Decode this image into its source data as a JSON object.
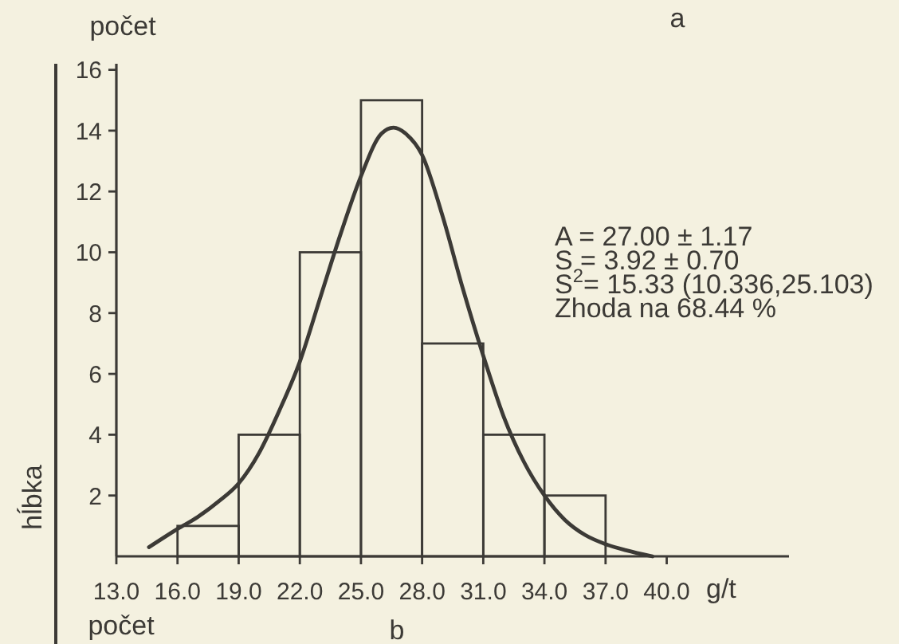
{
  "chart_data": {
    "type": "histogram",
    "title": "a",
    "xlabel": "g/t",
    "ylabel": "počet",
    "bins": [
      16,
      19,
      22,
      25,
      28,
      31,
      34,
      37
    ],
    "series": [
      {
        "color": "#3c3a36",
        "values": [
          1,
          4,
          10,
          15,
          7,
          4,
          2
        ]
      },
      {
        "type": "line",
        "color": "#3c3a36",
        "x": [
          14.6,
          16,
          17,
          18,
          19,
          20,
          21,
          22,
          23,
          24,
          25,
          26,
          26.6,
          27.2,
          28,
          29,
          30,
          31,
          32,
          33,
          34,
          35,
          36,
          37,
          38,
          39.3
        ],
        "values": [
          0.3,
          0.9,
          1.3,
          1.8,
          2.4,
          3.4,
          4.8,
          6.4,
          8.5,
          10.6,
          12.5,
          13.9,
          14.1,
          13.9,
          13.2,
          11.2,
          8.8,
          6.6,
          4.6,
          3.1,
          2.0,
          1.2,
          0.7,
          0.4,
          0.2,
          0
        ]
      }
    ],
    "xlim": [
      13,
      46
    ],
    "xticks": [
      {
        "value": 13,
        "label": "13.0"
      },
      {
        "value": 16,
        "label": "16.0"
      },
      {
        "value": 19,
        "label": "19.0"
      },
      {
        "value": 22,
        "label": "22.0"
      },
      {
        "value": 25,
        "label": "25.0"
      },
      {
        "value": 28,
        "label": "28.0"
      },
      {
        "value": 31,
        "label": "31.0"
      },
      {
        "value": 34,
        "label": "34.0"
      },
      {
        "value": 37,
        "label": "37.0"
      },
      {
        "value": 40,
        "label": "40.0"
      }
    ],
    "ylim": [
      0,
      16.2
    ],
    "yticks": [
      2,
      4,
      6,
      8,
      10,
      12,
      14,
      16
    ],
    "annotations": [
      "A = 27.00 ± 1.17",
      "S = 3.92 ± 0.70",
      "S$^{2}$= 15.33 (10.336,25.103)",
      "Zhoda na 68.44 %",
      "b",
      "hĺbka",
      "počet"
    ]
  }
}
